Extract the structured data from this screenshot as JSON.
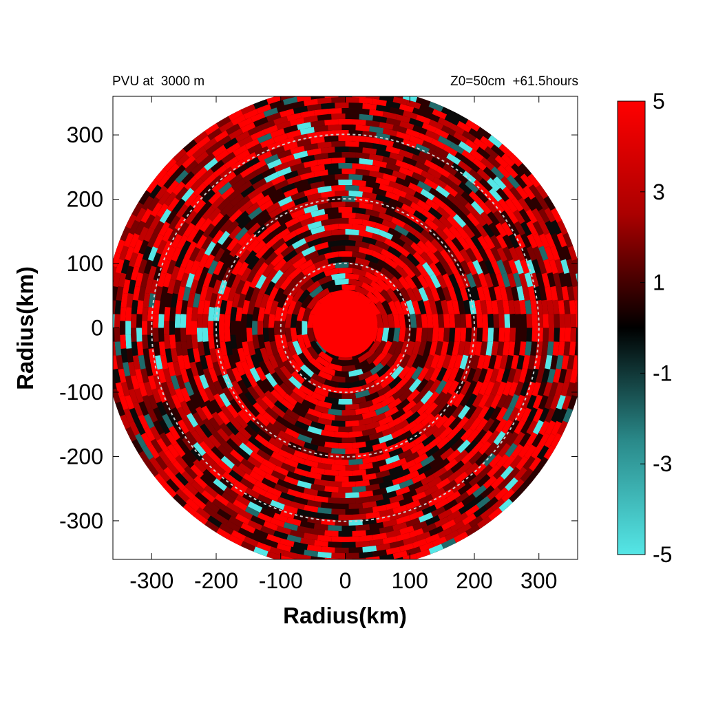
{
  "chart_data": {
    "type": "heatmap",
    "title_left": "PVU at  3000 m",
    "title_right": "Z0=50cm  +61.5hours",
    "xlabel": "Radius(km)",
    "ylabel": "Radius(km)",
    "xlim": [
      -360,
      360
    ],
    "ylim": [
      -360,
      360
    ],
    "x_ticks": [
      -300,
      -200,
      -100,
      0,
      100,
      200,
      300
    ],
    "y_ticks": [
      300,
      200,
      100,
      0,
      -100,
      -200,
      -300
    ],
    "domain_radius_km": 375,
    "reference_circles_km": [
      100,
      200,
      300
    ],
    "core_radius_km": 50,
    "colorbar": {
      "range": [
        -5,
        5
      ],
      "ticks": [
        5,
        3,
        1,
        -1,
        -3,
        -5
      ],
      "colors": {
        "high": "#ff0000",
        "mid": "#000000",
        "low": "#55e6e6"
      }
    },
    "grid": false,
    "legend": "colorbar-right"
  }
}
